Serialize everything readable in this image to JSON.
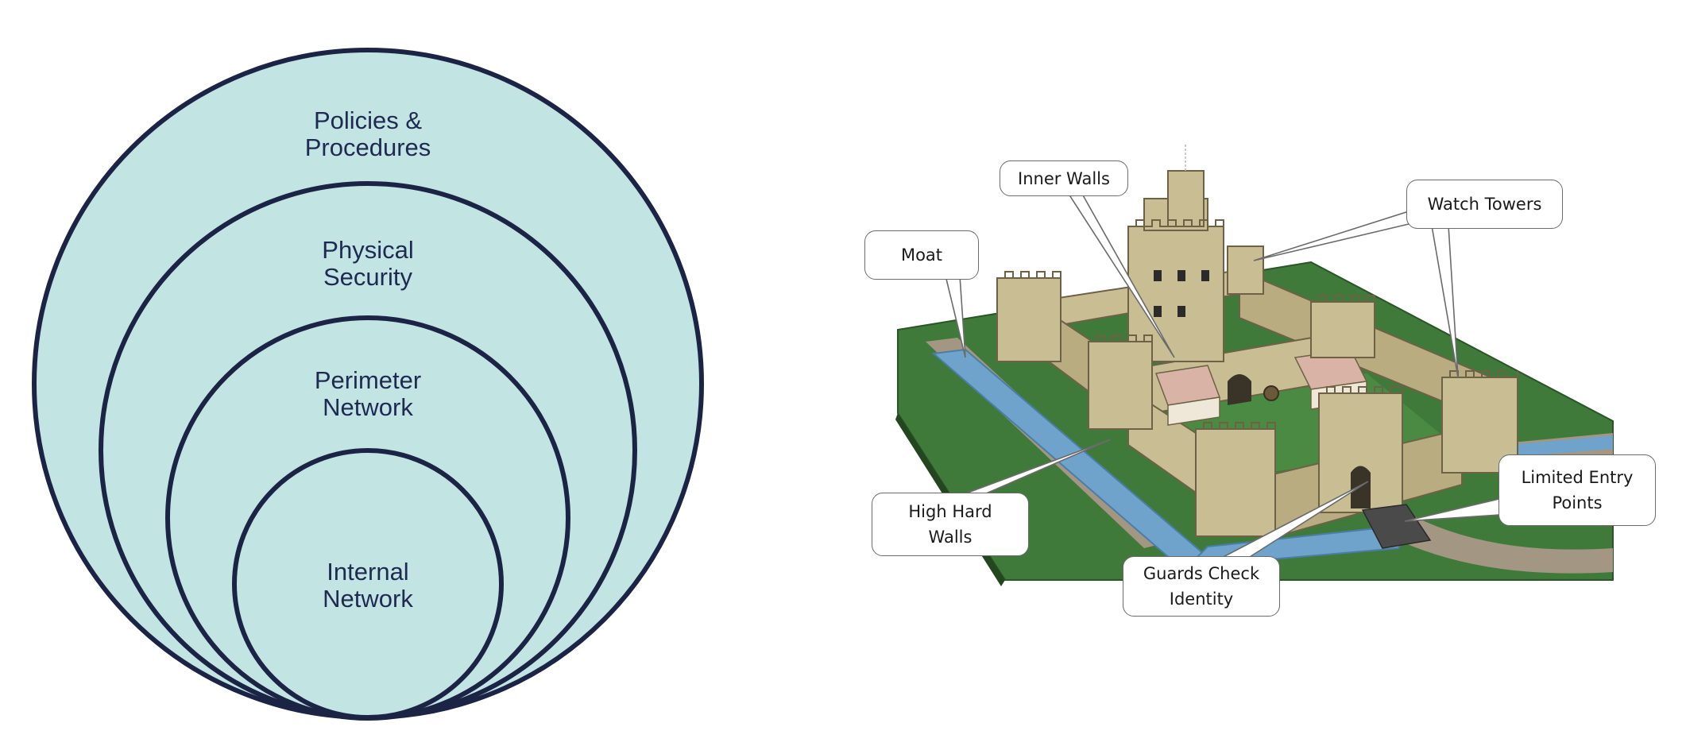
{
  "colors": {
    "ring_fill": "#c2e5e4",
    "ring_stroke": "#1c2446",
    "ring_text": "#1f2a52",
    "grass": "#3f7a3a",
    "water": "#6fa3cc",
    "stone": "#c9bd93",
    "path": "#a39682",
    "roof": "#d9b3a6"
  },
  "layers_diagram": {
    "rings": [
      {
        "id": "policies",
        "lines": [
          "Policies &",
          "Procedures"
        ]
      },
      {
        "id": "physical",
        "lines": [
          "Physical",
          "Security"
        ]
      },
      {
        "id": "perimeter",
        "lines": [
          "Perimeter",
          "Network"
        ]
      },
      {
        "id": "internal",
        "lines": [
          "Internal",
          "Network"
        ]
      }
    ]
  },
  "castle_diagram": {
    "callouts": [
      {
        "id": "moat",
        "lines": [
          "Moat"
        ]
      },
      {
        "id": "inner-walls",
        "lines": [
          "Inner Walls"
        ]
      },
      {
        "id": "watch-towers",
        "lines": [
          "Watch Towers"
        ]
      },
      {
        "id": "high-hard-walls",
        "lines": [
          "High Hard",
          "Walls"
        ]
      },
      {
        "id": "guards-check-identity",
        "lines": [
          "Guards Check",
          "Identity"
        ]
      },
      {
        "id": "limited-entry-points",
        "lines": [
          "Limited Entry",
          "Points"
        ]
      }
    ]
  }
}
